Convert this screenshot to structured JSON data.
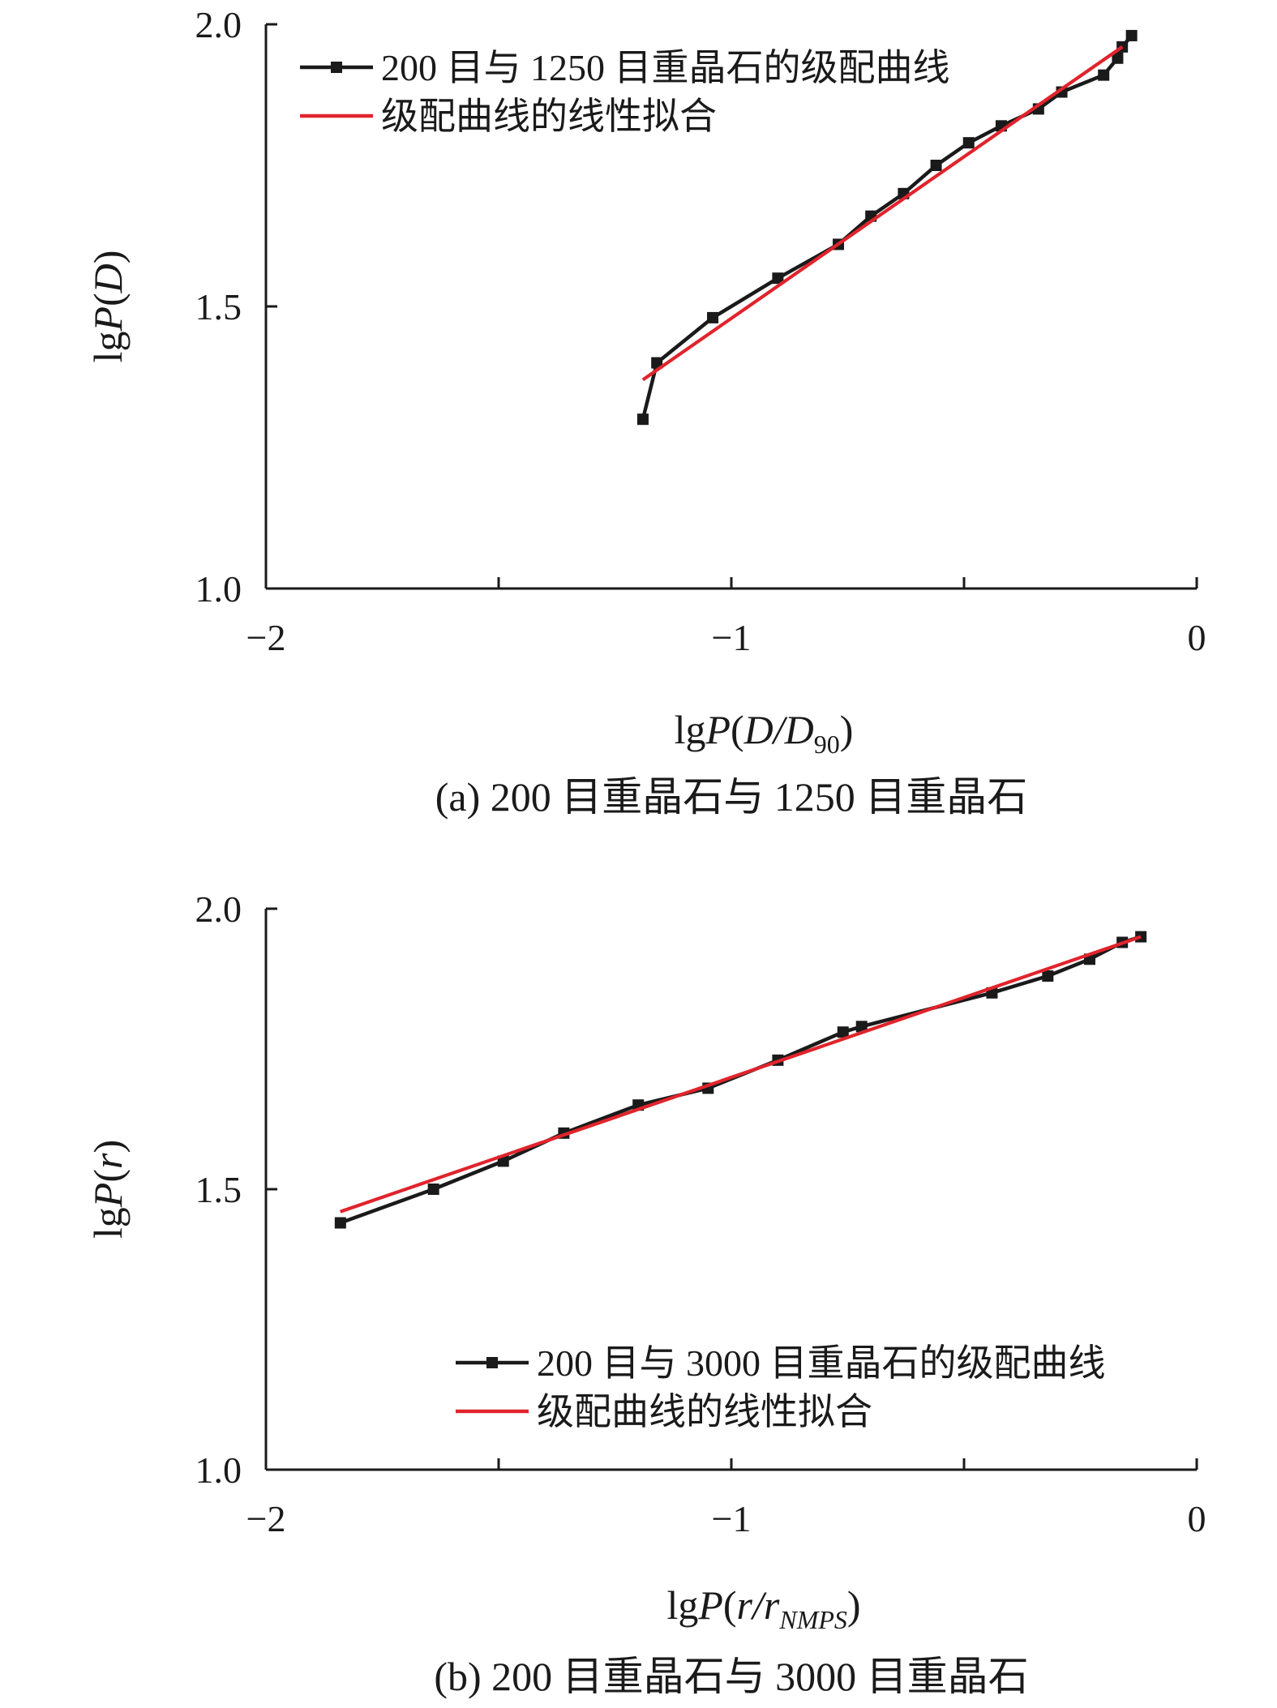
{
  "colors": {
    "data_line": "#1a1a1a",
    "fit_line": "#e0242c",
    "axis": "#1a1a1a"
  },
  "chart_data": [
    {
      "type": "line",
      "caption": "(a) 200 目重晶石与 1250 目重晶石",
      "xlabel": {
        "prefix": "lg",
        "var": "P",
        "open": "(",
        "body": "D/D",
        "sub": "90",
        "close": ")"
      },
      "ylabel": {
        "prefix": "lg",
        "var": "P",
        "open": "(",
        "body": "D",
        "close": ")"
      },
      "xlim": [
        -2,
        0
      ],
      "ylim": [
        1.0,
        2.0
      ],
      "xticks": [
        -2,
        -1,
        0
      ],
      "yticks": [
        1.0,
        1.5,
        2.0
      ],
      "xtick_labels": [
        "−2",
        "−1",
        "0"
      ],
      "ytick_labels": [
        "1.0",
        "1.5",
        "2.0"
      ],
      "legend_position": "top-left",
      "series": [
        {
          "name": "200 目与 1250 目重晶石的级配曲线",
          "style": "line-markers",
          "x": [
            -1.19,
            -1.16,
            -1.04,
            -0.9,
            -0.77,
            -0.7,
            -0.63,
            -0.56,
            -0.49,
            -0.42,
            -0.34,
            -0.29,
            -0.2,
            -0.17,
            -0.16,
            -0.14
          ],
          "y": [
            1.3,
            1.4,
            1.48,
            1.55,
            1.61,
            1.66,
            1.7,
            1.75,
            1.79,
            1.82,
            1.85,
            1.88,
            1.91,
            1.94,
            1.96,
            1.98
          ]
        },
        {
          "name": "级配曲线的线性拟合",
          "style": "line",
          "x": [
            -1.19,
            -0.16
          ],
          "y": [
            1.37,
            1.96
          ]
        }
      ]
    },
    {
      "type": "line",
      "caption": "(b) 200 目重晶石与 3000 目重晶石",
      "xlabel": {
        "prefix": "lg",
        "var": "P",
        "open": "(",
        "body": "r/r",
        "sub": "NMPS",
        "close": ")"
      },
      "ylabel": {
        "prefix": "lg",
        "var": "P",
        "open": "(",
        "body": "r",
        "close": ")"
      },
      "xlim": [
        -2,
        0
      ],
      "ylim": [
        1.0,
        2.0
      ],
      "xticks": [
        -2,
        -1,
        0
      ],
      "yticks": [
        1.0,
        1.5,
        2.0
      ],
      "xtick_labels": [
        "−2",
        "−1",
        "0"
      ],
      "ytick_labels": [
        "1.0",
        "1.5",
        "2.0"
      ],
      "legend_position": "bottom-right",
      "series": [
        {
          "name": "200 目与 3000 目重晶石的级配曲线",
          "style": "line-markers",
          "x": [
            -1.84,
            -1.64,
            -1.49,
            -1.36,
            -1.2,
            -1.05,
            -0.9,
            -0.76,
            -0.72,
            -0.44,
            -0.32,
            -0.23,
            -0.16,
            -0.12
          ],
          "y": [
            1.44,
            1.5,
            1.55,
            1.6,
            1.65,
            1.68,
            1.73,
            1.78,
            1.79,
            1.85,
            1.88,
            1.91,
            1.94,
            1.95
          ]
        },
        {
          "name": "级配曲线的线性拟合",
          "style": "line",
          "x": [
            -1.84,
            -0.12
          ],
          "y": [
            1.46,
            1.95
          ]
        }
      ]
    }
  ]
}
